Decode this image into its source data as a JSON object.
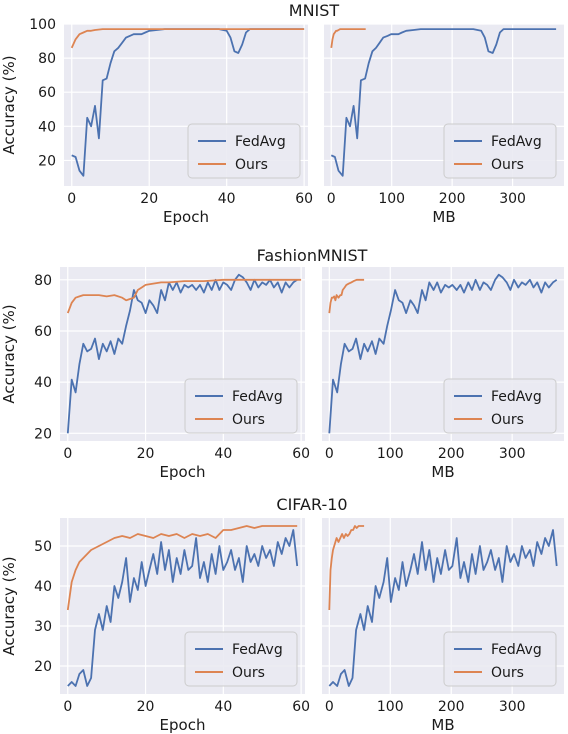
{
  "figure": {
    "colors": {
      "background": "#eaeaf2",
      "grid": "#ffffff",
      "fedavg": "#4c72b0",
      "ours": "#dd8452"
    }
  },
  "chart_data": [
    {
      "type": "line",
      "title": "MNIST",
      "xlabel": "Epoch",
      "ylabel": "Accuracy (%)",
      "xlim": [
        -2,
        61
      ],
      "ylim": [
        5,
        100
      ],
      "xticks": [
        0,
        20,
        40,
        60
      ],
      "yticks": [
        20,
        40,
        60,
        80,
        100
      ],
      "grid": true,
      "legend": "lower right",
      "series": [
        {
          "name": "FedAvg",
          "x": [
            0,
            1,
            2,
            3,
            4,
            5,
            6,
            7,
            8,
            9,
            10,
            11,
            12,
            13,
            14,
            15,
            16,
            17,
            18,
            19,
            20,
            22,
            24,
            26,
            28,
            30,
            32,
            34,
            36,
            38,
            40,
            41,
            42,
            43,
            44,
            45,
            46,
            47,
            48,
            50,
            52,
            54,
            56,
            58,
            60
          ],
          "y": [
            23,
            22,
            14,
            11,
            45,
            40,
            52,
            33,
            67,
            68,
            77,
            84,
            86,
            89,
            92,
            93,
            94,
            94,
            94,
            95,
            96,
            96.5,
            97,
            97,
            97,
            97,
            97,
            97,
            97,
            97,
            96,
            92,
            84,
            83,
            88,
            95,
            97,
            97,
            97,
            97,
            97,
            97,
            97,
            97,
            97
          ]
        },
        {
          "name": "Ours",
          "x": [
            0,
            1,
            2,
            3,
            4,
            5,
            6,
            8,
            10,
            15,
            20,
            30,
            40,
            50,
            60
          ],
          "y": [
            86,
            91,
            94,
            95,
            96,
            96,
            96.5,
            97,
            97,
            97,
            97,
            97,
            97,
            97,
            97
          ]
        }
      ]
    },
    {
      "type": "line",
      "title": "",
      "xlabel": "MB",
      "ylabel": "",
      "xlim": [
        -12,
        385
      ],
      "ylim": [
        5,
        100
      ],
      "xticks": [
        0,
        100,
        200,
        300
      ],
      "yticks": [
        20,
        40,
        60,
        80,
        100
      ],
      "grid": true,
      "legend": "lower right",
      "series": [
        {
          "name": "FedAvg",
          "x": [
            0,
            6,
            12,
            19,
            25,
            31,
            37,
            43,
            49,
            56,
            62,
            68,
            74,
            80,
            86,
            93,
            99,
            105,
            111,
            117,
            124,
            136,
            148,
            161,
            173,
            186,
            198,
            210,
            223,
            235,
            248,
            254,
            260,
            267,
            273,
            279,
            285,
            291,
            298,
            310,
            322,
            335,
            347,
            359,
            372
          ],
          "y": [
            23,
            22,
            14,
            11,
            45,
            40,
            52,
            33,
            67,
            68,
            77,
            84,
            86,
            89,
            92,
            93,
            94,
            94,
            94,
            95,
            96,
            96.5,
            97,
            97,
            97,
            97,
            97,
            97,
            97,
            97,
            96,
            92,
            84,
            83,
            88,
            95,
            97,
            97,
            97,
            97,
            97,
            97,
            97,
            97,
            97
          ]
        },
        {
          "name": "Ours",
          "x": [
            0,
            2,
            4,
            6,
            8,
            10,
            12,
            15,
            20,
            30,
            40,
            50,
            57
          ],
          "y": [
            86,
            91,
            94,
            95,
            96,
            96,
            96.5,
            97,
            97,
            97,
            97,
            97,
            97
          ]
        }
      ]
    },
    {
      "type": "line",
      "title": "FashionMNIST",
      "xlabel": "Epoch",
      "ylabel": "Accuracy (%)",
      "xlim": [
        -2,
        61
      ],
      "ylim": [
        17,
        85
      ],
      "xticks": [
        0,
        20,
        40,
        60
      ],
      "yticks": [
        20,
        40,
        60,
        80
      ],
      "grid": true,
      "legend": "lower right",
      "series": [
        {
          "name": "FedAvg",
          "x": [
            0,
            1,
            2,
            3,
            4,
            5,
            6,
            7,
            8,
            9,
            10,
            11,
            12,
            13,
            14,
            15,
            16,
            17,
            18,
            19,
            20,
            21,
            22,
            23,
            24,
            25,
            26,
            27,
            28,
            29,
            30,
            31,
            32,
            33,
            34,
            35,
            36,
            37,
            38,
            39,
            40,
            41,
            42,
            43,
            44,
            45,
            46,
            47,
            48,
            49,
            50,
            51,
            52,
            53,
            54,
            55,
            56,
            57,
            58,
            59
          ],
          "y": [
            20,
            41,
            36,
            47,
            55,
            52,
            53,
            57,
            49,
            55,
            52,
            56,
            51,
            57,
            55,
            62,
            68,
            76,
            72,
            71,
            67,
            72,
            70,
            67,
            76,
            72,
            79,
            76,
            79,
            75,
            78,
            77,
            78,
            76,
            78,
            75,
            79,
            76,
            80,
            76,
            79,
            78,
            76,
            80,
            82,
            81,
            79,
            76,
            80,
            77,
            79,
            78,
            80,
            77,
            79,
            75,
            79,
            77,
            79,
            80
          ]
        },
        {
          "name": "Ours",
          "x": [
            0,
            1,
            2,
            3,
            4,
            6,
            8,
            10,
            12,
            14,
            15,
            16,
            17,
            18,
            19,
            20,
            22,
            24,
            26,
            30,
            35,
            40,
            45,
            50,
            55,
            60
          ],
          "y": [
            67,
            71,
            73,
            73.5,
            74,
            74,
            74,
            73.5,
            74,
            73,
            72,
            72.5,
            73,
            76,
            77,
            78,
            78.5,
            79,
            79,
            79.5,
            79.5,
            80,
            80,
            80,
            80,
            80
          ]
        }
      ]
    },
    {
      "type": "line",
      "title": "",
      "xlabel": "MB",
      "ylabel": "",
      "xlim": [
        -12,
        385
      ],
      "ylim": [
        17,
        85
      ],
      "xticks": [
        0,
        100,
        200,
        300
      ],
      "yticks": [
        20,
        40,
        60,
        80
      ],
      "grid": true,
      "legend": "lower right",
      "series": [
        {
          "name": "FedAvg",
          "x": [
            0,
            6,
            13,
            19,
            25,
            32,
            38,
            44,
            51,
            57,
            63,
            70,
            76,
            82,
            89,
            95,
            101,
            108,
            114,
            120,
            126,
            133,
            139,
            145,
            152,
            158,
            164,
            171,
            177,
            183,
            190,
            196,
            202,
            209,
            215,
            221,
            228,
            234,
            240,
            247,
            253,
            259,
            265,
            272,
            278,
            284,
            291,
            297,
            303,
            310,
            316,
            322,
            329,
            335,
            341,
            348,
            354,
            360,
            367,
            373
          ],
          "y": [
            20,
            41,
            36,
            47,
            55,
            52,
            53,
            57,
            49,
            55,
            52,
            56,
            51,
            57,
            55,
            62,
            68,
            76,
            72,
            71,
            67,
            72,
            70,
            67,
            76,
            72,
            79,
            76,
            79,
            75,
            78,
            77,
            78,
            76,
            78,
            75,
            79,
            76,
            80,
            76,
            79,
            78,
            76,
            80,
            82,
            81,
            79,
            76,
            80,
            77,
            79,
            78,
            80,
            77,
            79,
            75,
            79,
            77,
            79,
            80
          ]
        },
        {
          "name": "Ours",
          "x": [
            0,
            2,
            4,
            6,
            8,
            10,
            12,
            15,
            18,
            20,
            22,
            25,
            28,
            32,
            36,
            40,
            45,
            50,
            55,
            57
          ],
          "y": [
            67,
            71,
            73,
            73,
            73.5,
            72,
            74,
            73,
            74,
            74,
            76,
            77,
            78,
            78.5,
            79,
            79.5,
            80,
            80,
            80,
            80
          ]
        }
      ]
    },
    {
      "type": "line",
      "title": "CIFAR-10",
      "xlabel": "Epoch",
      "ylabel": "Accuracy (%)",
      "xlim": [
        -2,
        61
      ],
      "ylim": [
        13,
        57
      ],
      "xticks": [
        0,
        20,
        40,
        60
      ],
      "yticks": [
        20,
        30,
        40,
        50
      ],
      "grid": true,
      "legend": "lower right",
      "series": [
        {
          "name": "FedAvg",
          "x": [
            0,
            1,
            2,
            3,
            4,
            5,
            6,
            7,
            8,
            9,
            10,
            11,
            12,
            13,
            14,
            15,
            16,
            17,
            18,
            19,
            20,
            21,
            22,
            23,
            24,
            25,
            26,
            27,
            28,
            29,
            30,
            31,
            32,
            33,
            34,
            35,
            36,
            37,
            38,
            39,
            40,
            41,
            42,
            43,
            44,
            45,
            46,
            47,
            48,
            49,
            50,
            51,
            52,
            53,
            54,
            55,
            56,
            57,
            58,
            59
          ],
          "y": [
            15,
            16,
            15,
            18,
            19,
            15,
            17,
            29,
            33,
            29,
            35,
            31,
            40,
            37,
            41,
            47,
            36,
            42,
            39,
            46,
            40,
            44,
            48,
            43,
            51,
            44,
            49,
            41,
            47,
            43,
            49,
            44,
            45,
            52,
            42,
            46,
            41,
            48,
            43,
            50,
            44,
            46,
            49,
            44,
            47,
            41,
            50,
            46,
            48,
            45,
            50,
            47,
            49,
            45,
            51,
            48,
            52,
            50,
            54,
            45
          ]
        },
        {
          "name": "Ours",
          "x": [
            0,
            1,
            2,
            3,
            4,
            5,
            6,
            8,
            10,
            12,
            14,
            16,
            18,
            20,
            22,
            24,
            26,
            28,
            30,
            32,
            34,
            36,
            38,
            40,
            42,
            44,
            46,
            48,
            50,
            52,
            54,
            56,
            58,
            59
          ],
          "y": [
            34,
            41,
            44,
            46,
            47,
            48,
            49,
            50,
            51,
            52,
            52.5,
            52,
            53,
            52.5,
            52,
            53,
            52.5,
            53,
            52,
            53,
            52.5,
            53,
            52,
            54,
            54,
            54.5,
            55,
            54.5,
            55,
            55,
            55,
            55,
            55,
            55
          ]
        }
      ]
    },
    {
      "type": "line",
      "title": "",
      "xlabel": "MB",
      "ylabel": "",
      "xlim": [
        -12,
        385
      ],
      "ylim": [
        13,
        57
      ],
      "xticks": [
        0,
        100,
        200,
        300
      ],
      "yticks": [
        20,
        30,
        40,
        50
      ],
      "grid": true,
      "legend": "lower right",
      "series": [
        {
          "name": "FedAvg",
          "x": [
            0,
            6,
            13,
            19,
            25,
            32,
            38,
            44,
            51,
            57,
            63,
            70,
            76,
            82,
            89,
            95,
            101,
            108,
            114,
            120,
            126,
            133,
            139,
            145,
            152,
            158,
            164,
            171,
            177,
            183,
            190,
            196,
            202,
            209,
            215,
            221,
            228,
            234,
            240,
            247,
            253,
            259,
            265,
            272,
            278,
            284,
            291,
            297,
            303,
            310,
            316,
            322,
            329,
            335,
            341,
            348,
            354,
            360,
            367,
            373
          ],
          "y": [
            15,
            16,
            15,
            18,
            19,
            15,
            17,
            29,
            33,
            29,
            35,
            31,
            40,
            37,
            41,
            47,
            36,
            42,
            39,
            46,
            40,
            44,
            48,
            43,
            51,
            44,
            49,
            41,
            47,
            43,
            49,
            44,
            45,
            52,
            42,
            46,
            41,
            48,
            43,
            50,
            44,
            46,
            49,
            44,
            47,
            41,
            50,
            46,
            48,
            45,
            50,
            47,
            49,
            45,
            51,
            48,
            52,
            50,
            54,
            45
          ]
        },
        {
          "name": "Ours",
          "x": [
            0,
            2,
            4,
            6,
            8,
            10,
            12,
            15,
            18,
            21,
            24,
            27,
            30,
            33,
            36,
            39,
            42,
            45,
            48,
            51,
            54,
            57
          ],
          "y": [
            34,
            44,
            47,
            49,
            50,
            51,
            52,
            51,
            52,
            53,
            52,
            53,
            52.5,
            53,
            54,
            54,
            55,
            54.5,
            55,
            55,
            55,
            55
          ]
        }
      ]
    }
  ]
}
